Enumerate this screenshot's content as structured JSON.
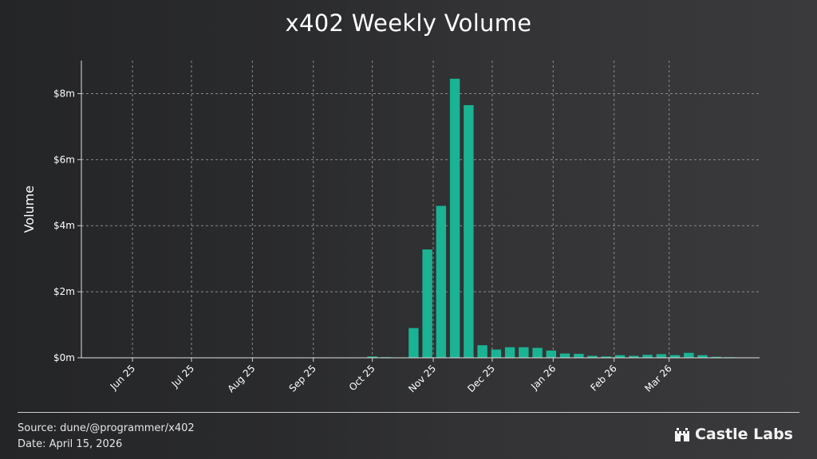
{
  "title": "x402 Weekly Volume",
  "footer": {
    "source": "Source: dune/@programmer/x402",
    "date": "Date: April 15, 2026"
  },
  "brand": {
    "name": "Castle Labs",
    "icon": "castle-icon"
  },
  "colors": {
    "bar": "#1ab394",
    "grid": "#8a8a8a",
    "text": "#ffffff"
  },
  "chart_data": {
    "type": "bar",
    "ylabel": "Volume",
    "xlabel": "",
    "ylim": [
      0,
      9
    ],
    "y_ticks": [
      {
        "value": 0,
        "label": "$0m"
      },
      {
        "value": 2,
        "label": "$2m"
      },
      {
        "value": 4,
        "label": "$4m"
      },
      {
        "value": 6,
        "label": "$6m"
      },
      {
        "value": 8,
        "label": "$8m"
      }
    ],
    "x_ticks": [
      {
        "date": "2025-06-01",
        "label": "Jun 25"
      },
      {
        "date": "2025-07-01",
        "label": "Jul 25"
      },
      {
        "date": "2025-08-01",
        "label": "Aug 25"
      },
      {
        "date": "2025-09-01",
        "label": "Sep 25"
      },
      {
        "date": "2025-10-01",
        "label": "Oct 25"
      },
      {
        "date": "2025-11-01",
        "label": "Nov 25"
      },
      {
        "date": "2025-12-01",
        "label": "Dec 25"
      },
      {
        "date": "2026-01-01",
        "label": "Jan 26"
      },
      {
        "date": "2026-02-01",
        "label": "Feb 26"
      },
      {
        "date": "2026-03-01",
        "label": "Mar 26"
      }
    ],
    "x_range": [
      "2025-05-06",
      "2026-04-16"
    ],
    "grid": true,
    "unit": "$m",
    "series": [
      {
        "points": [
          {
            "week": "2025-10-01",
            "value": 0.04
          },
          {
            "week": "2025-10-08",
            "value": 0.02
          },
          {
            "week": "2025-10-15",
            "value": 0.01
          },
          {
            "week": "2025-10-22",
            "value": 0.9
          },
          {
            "week": "2025-10-29",
            "value": 3.28
          },
          {
            "week": "2025-11-05",
            "value": 4.6
          },
          {
            "week": "2025-11-12",
            "value": 8.45
          },
          {
            "week": "2025-11-19",
            "value": 7.65
          },
          {
            "week": "2025-11-26",
            "value": 0.38
          },
          {
            "week": "2025-12-03",
            "value": 0.25
          },
          {
            "week": "2025-12-10",
            "value": 0.32
          },
          {
            "week": "2025-12-17",
            "value": 0.32
          },
          {
            "week": "2025-12-24",
            "value": 0.3
          },
          {
            "week": "2025-12-31",
            "value": 0.22
          },
          {
            "week": "2026-01-07",
            "value": 0.13
          },
          {
            "week": "2026-01-14",
            "value": 0.12
          },
          {
            "week": "2026-01-21",
            "value": 0.06
          },
          {
            "week": "2026-01-28",
            "value": 0.04
          },
          {
            "week": "2026-02-04",
            "value": 0.08
          },
          {
            "week": "2026-02-11",
            "value": 0.06
          },
          {
            "week": "2026-02-18",
            "value": 0.09
          },
          {
            "week": "2026-02-25",
            "value": 0.11
          },
          {
            "week": "2026-03-04",
            "value": 0.08
          },
          {
            "week": "2026-03-11",
            "value": 0.15
          },
          {
            "week": "2026-03-18",
            "value": 0.08
          },
          {
            "week": "2026-03-25",
            "value": 0.03
          },
          {
            "week": "2026-04-01",
            "value": 0.02
          }
        ]
      }
    ]
  }
}
